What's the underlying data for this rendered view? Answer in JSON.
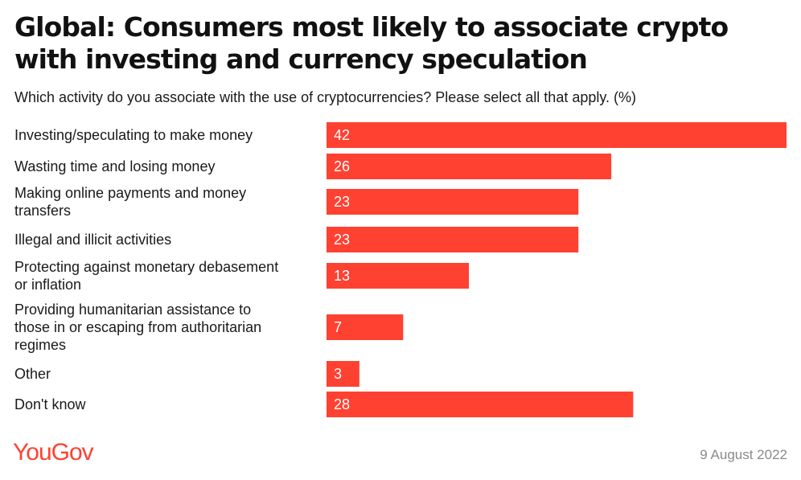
{
  "title": "Global: Consumers most likely to associate crypto with investing and currency speculation",
  "subtitle": "Which activity do you associate with the use of cryptocurrencies? Please select all that apply. (%)",
  "brand": "YouGov",
  "date": "9 August 2022",
  "colors": {
    "bar": "#ff4131",
    "brand": "#ff4131",
    "text": "#1a1a1a",
    "muted": "#8a8a8a"
  },
  "chart_data": {
    "type": "bar",
    "orientation": "horizontal",
    "categories": [
      "Investing/speculating to make money",
      "Wasting time and losing money",
      "Making online payments and money transfers",
      "Illegal and illicit activities",
      "Protecting against monetary debasement or inflation",
      "Providing humanitarian assistance to those in or escaping from authoritarian regimes",
      "Other",
      "Don't know"
    ],
    "values": [
      42,
      26,
      23,
      23,
      13,
      7,
      3,
      28
    ],
    "data_labels": [
      "42",
      "26",
      "23",
      "23",
      "13",
      "7",
      "3",
      "28"
    ],
    "xlim": [
      0,
      42
    ],
    "grid": false,
    "legend": "none"
  }
}
